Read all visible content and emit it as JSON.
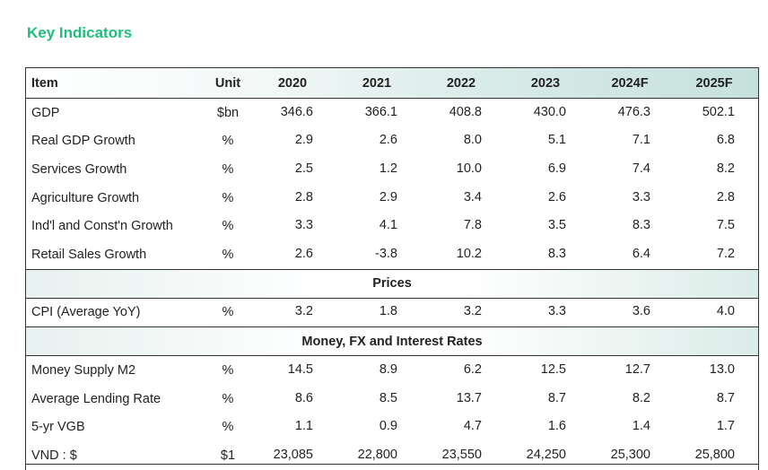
{
  "title": "Key Indicators",
  "header": {
    "item": "Item",
    "unit": "Unit",
    "years": [
      "2020",
      "2021",
      "2022",
      "2023",
      "2024F",
      "2025F"
    ]
  },
  "rows_main": [
    {
      "item": "GDP",
      "unit": "$bn",
      "values": [
        "346.6",
        "366.1",
        "408.8",
        "430.0",
        "476.3",
        "502.1"
      ]
    },
    {
      "item": "Real GDP Growth",
      "unit": "%",
      "values": [
        "2.9",
        "2.6",
        "8.0",
        "5.1",
        "7.1",
        "6.8"
      ]
    },
    {
      "item": "Services Growth",
      "unit": "%",
      "values": [
        "2.5",
        "1.2",
        "10.0",
        "6.9",
        "7.4",
        "8.2"
      ]
    },
    {
      "item": "Agriculture Growth",
      "unit": "%",
      "values": [
        "2.8",
        "2.9",
        "3.4",
        "2.6",
        "3.3",
        "2.8"
      ]
    },
    {
      "item": "Ind'l and Const'n Growth",
      "unit": "%",
      "values": [
        "3.3",
        "4.1",
        "7.8",
        "3.5",
        "8.3",
        "7.5"
      ]
    },
    {
      "item": "Retail Sales Growth",
      "unit": "%",
      "values": [
        "2.6",
        "-3.8",
        "10.2",
        "8.3",
        "6.4",
        "7.2"
      ]
    }
  ],
  "section_prices": "Prices",
  "rows_prices": [
    {
      "item": "CPI (Average YoY)",
      "unit": "%",
      "values": [
        "3.2",
        "1.8",
        "3.2",
        "3.3",
        "3.6",
        "4.0"
      ]
    }
  ],
  "section_money": "Money, FX and Interest Rates",
  "rows_money": [
    {
      "item": "Money Supply M2",
      "unit": "%",
      "values": [
        "14.5",
        "8.9",
        "6.2",
        "12.5",
        "12.7",
        "13.0"
      ]
    },
    {
      "item": "Average Lending Rate",
      "unit": "%",
      "values": [
        "8.6",
        "8.5",
        "13.7",
        "8.7",
        "8.2",
        "8.7"
      ]
    },
    {
      "item": "5-yr VGB",
      "unit": "%",
      "values": [
        "1.1",
        "0.9",
        "4.7",
        "1.6",
        "1.4",
        "1.7"
      ]
    },
    {
      "item": "VND : $",
      "unit": "$1",
      "values": [
        "23,085",
        "22,800",
        "23,550",
        "24,250",
        "25,300",
        "25,800"
      ]
    }
  ]
}
